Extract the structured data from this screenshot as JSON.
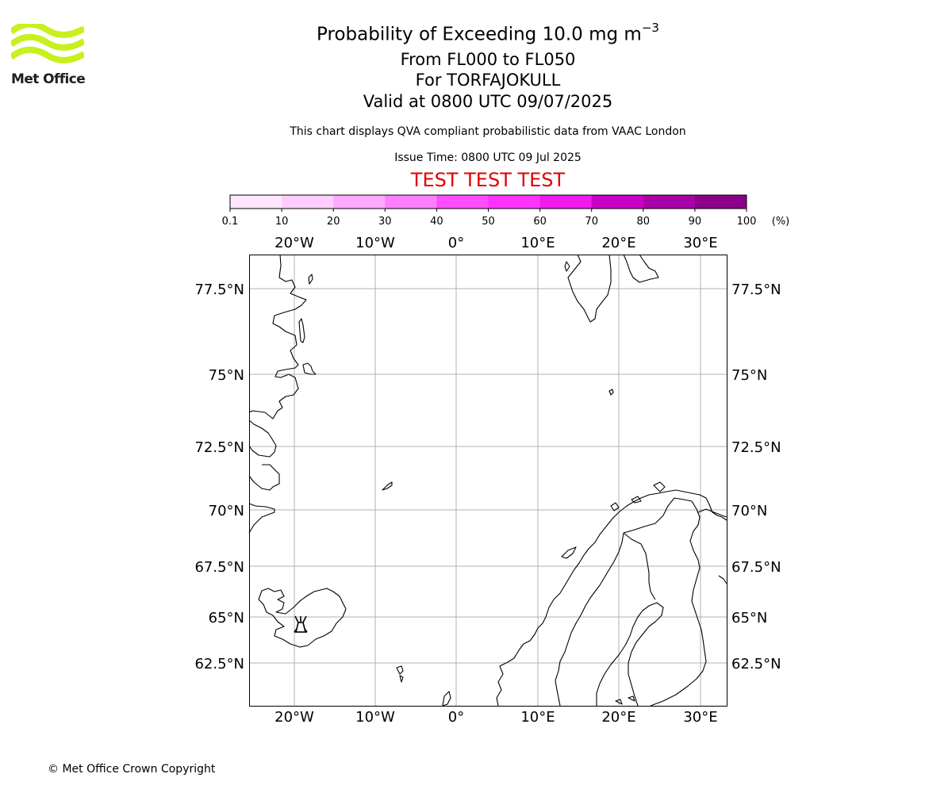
{
  "logo": {
    "text": "Met Office",
    "color": "#c8f01e"
  },
  "header": {
    "title_main": "Probability of Exceeding 10.0 mg m",
    "title_sup": "−3",
    "line2": "From FL000 to FL050",
    "line3": "For TORFAJOKULL",
    "line4": "Valid at 0800 UTC 09/07/2025",
    "subtitle": "This chart displays QVA compliant probabilistic data from VAAC London",
    "issue_time": "Issue Time: 0800 UTC 09 Jul 2025",
    "test_banner": "TEST TEST TEST",
    "test_banner_color": "#e00000"
  },
  "colorbar": {
    "tick_labels": [
      "0.1",
      "10",
      "20",
      "30",
      "40",
      "50",
      "60",
      "70",
      "80",
      "90",
      "100"
    ],
    "unit_label": "(%)",
    "colors": [
      "#ffe6ff",
      "#ffccff",
      "#ffa8ff",
      "#ff80ff",
      "#ff4dff",
      "#ff33ff",
      "#f01af0",
      "#c800c8",
      "#aa00aa",
      "#8c008c",
      "#6b006b"
    ]
  },
  "map": {
    "lon_labels": [
      "20°W",
      "10°W",
      "0°",
      "10°E",
      "20°E",
      "30°E"
    ],
    "lat_labels": [
      "77.5°N",
      "75°N",
      "72.5°N",
      "70°N",
      "67.5°N",
      "65°N",
      "62.5°N"
    ],
    "volcano_name": "TORFAJOKULL",
    "gridlines": true,
    "grid_color": "#b0b0b0"
  },
  "footer": {
    "copyright": "© Met Office Crown Copyright"
  }
}
